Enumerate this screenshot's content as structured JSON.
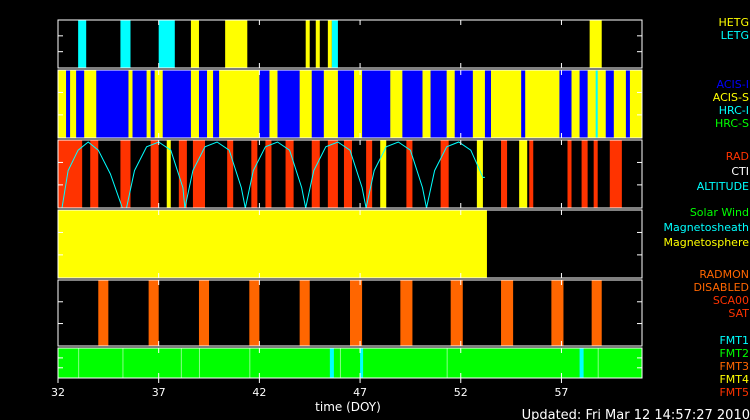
{
  "chart_data": {
    "type": "timeline",
    "xlabel": "time (DOY)",
    "xlim": [
      32,
      61
    ],
    "ticks": [
      32,
      37,
      42,
      47,
      52,
      57
    ],
    "footer": "Updated: Fri Mar 12 14:57:27 2010",
    "panels": [
      {
        "id": "grating",
        "legend": [
          {
            "label": "HETG",
            "color": "#ffff00"
          },
          {
            "label": "LETG",
            "color": "#00ffff"
          }
        ],
        "segments": [
          {
            "start": 33.0,
            "end": 33.4,
            "color": "#00ffff"
          },
          {
            "start": 35.1,
            "end": 35.6,
            "color": "#00ffff"
          },
          {
            "start": 37.0,
            "end": 37.8,
            "color": "#00ffff"
          },
          {
            "start": 38.6,
            "end": 39.0,
            "color": "#ffff00"
          },
          {
            "start": 40.3,
            "end": 41.4,
            "color": "#ffff00"
          },
          {
            "start": 44.3,
            "end": 44.5,
            "color": "#ffff00"
          },
          {
            "start": 44.8,
            "end": 45.0,
            "color": "#ffff00"
          },
          {
            "start": 45.4,
            "end": 45.6,
            "color": "#ffff00"
          },
          {
            "start": 45.6,
            "end": 45.9,
            "color": "#00ffff"
          },
          {
            "start": 58.4,
            "end": 59.0,
            "color": "#ffff00"
          }
        ]
      },
      {
        "id": "instrument",
        "legend": [
          {
            "label": "ACIS-I",
            "color": "#0000ff"
          },
          {
            "label": "ACIS-S",
            "color": "#ffff00"
          },
          {
            "label": "HRC-I",
            "color": "#00ffff"
          },
          {
            "label": "HRC-S",
            "color": "#00ff00"
          }
        ],
        "background": "#ffff00",
        "segments": [
          {
            "start": 32.4,
            "end": 32.6,
            "color": "#0000ff"
          },
          {
            "start": 32.9,
            "end": 33.3,
            "color": "#0000ff"
          },
          {
            "start": 33.9,
            "end": 35.5,
            "color": "#0000ff"
          },
          {
            "start": 35.7,
            "end": 36.4,
            "color": "#0000ff"
          },
          {
            "start": 36.6,
            "end": 36.8,
            "color": "#0000ff"
          },
          {
            "start": 37.2,
            "end": 38.6,
            "color": "#0000ff"
          },
          {
            "start": 39.0,
            "end": 39.4,
            "color": "#0000ff"
          },
          {
            "start": 39.7,
            "end": 40.0,
            "color": "#0000ff"
          },
          {
            "start": 42.0,
            "end": 42.5,
            "color": "#0000ff"
          },
          {
            "start": 42.9,
            "end": 44.0,
            "color": "#0000ff"
          },
          {
            "start": 44.6,
            "end": 45.2,
            "color": "#0000ff"
          },
          {
            "start": 45.9,
            "end": 46.7,
            "color": "#0000ff"
          },
          {
            "start": 47.1,
            "end": 48.5,
            "color": "#0000ff"
          },
          {
            "start": 49.1,
            "end": 50.1,
            "color": "#0000ff"
          },
          {
            "start": 50.5,
            "end": 51.3,
            "color": "#0000ff"
          },
          {
            "start": 51.7,
            "end": 52.6,
            "color": "#0000ff"
          },
          {
            "start": 53.2,
            "end": 53.5,
            "color": "#0000ff"
          },
          {
            "start": 55.0,
            "end": 55.2,
            "color": "#0000ff"
          },
          {
            "start": 56.9,
            "end": 57.5,
            "color": "#0000ff"
          },
          {
            "start": 57.9,
            "end": 58.3,
            "color": "#0000ff"
          },
          {
            "start": 59.2,
            "end": 59.6,
            "color": "#0000ff"
          },
          {
            "start": 60.2,
            "end": 60.4,
            "color": "#0000ff"
          },
          {
            "start": 58.7,
            "end": 58.8,
            "color": "#00ffff"
          }
        ]
      },
      {
        "id": "radiation",
        "legend": [
          {
            "label": "RAD",
            "color": "#ff3300"
          },
          {
            "label": "CTI",
            "color": "#ffffff"
          },
          {
            "label": "ALTITUDE",
            "color": "#00ffff"
          }
        ],
        "segments": [
          {
            "start": 32.0,
            "end": 33.2,
            "color": "#ff3300"
          },
          {
            "start": 33.6,
            "end": 34.0,
            "color": "#ff3300"
          },
          {
            "start": 35.1,
            "end": 35.6,
            "color": "#ff3300"
          },
          {
            "start": 36.6,
            "end": 37.0,
            "color": "#ff3300"
          },
          {
            "start": 37.4,
            "end": 37.6,
            "color": "#ffff00"
          },
          {
            "start": 38.0,
            "end": 38.4,
            "color": "#ff3300"
          },
          {
            "start": 38.7,
            "end": 39.3,
            "color": "#ff3300"
          },
          {
            "start": 40.4,
            "end": 40.7,
            "color": "#ff3300"
          },
          {
            "start": 41.6,
            "end": 41.9,
            "color": "#ff3300"
          },
          {
            "start": 42.3,
            "end": 42.6,
            "color": "#ff3300"
          },
          {
            "start": 43.3,
            "end": 43.7,
            "color": "#ff3300"
          },
          {
            "start": 44.6,
            "end": 45.0,
            "color": "#ff3300"
          },
          {
            "start": 45.4,
            "end": 45.9,
            "color": "#ff3300"
          },
          {
            "start": 46.2,
            "end": 46.6,
            "color": "#ff3300"
          },
          {
            "start": 47.3,
            "end": 47.6,
            "color": "#ff3300"
          },
          {
            "start": 48.0,
            "end": 48.3,
            "color": "#ffff00"
          },
          {
            "start": 49.3,
            "end": 49.6,
            "color": "#ff3300"
          },
          {
            "start": 51.0,
            "end": 51.4,
            "color": "#ff3300"
          },
          {
            "start": 52.8,
            "end": 53.1,
            "color": "#ffff00"
          },
          {
            "start": 54.0,
            "end": 54.3,
            "color": "#ff3300"
          },
          {
            "start": 54.9,
            "end": 55.3,
            "color": "#ffff00"
          },
          {
            "start": 55.4,
            "end": 55.6,
            "color": "#ff3300"
          },
          {
            "start": 57.3,
            "end": 57.5,
            "color": "#ff3300"
          },
          {
            "start": 58.0,
            "end": 58.3,
            "color": "#ff3300"
          },
          {
            "start": 58.6,
            "end": 58.8,
            "color": "#ff3300"
          },
          {
            "start": 59.4,
            "end": 60.0,
            "color": "#ff3300"
          }
        ],
        "altitude": {
          "color": "#00ffff",
          "range": [
            0,
            1
          ],
          "x": [
            32.2,
            32.5,
            33.0,
            33.5,
            34.0,
            34.6,
            35.2,
            35.4,
            35.8,
            36.4,
            37.0,
            37.6,
            38.2,
            38.3,
            38.7,
            39.3,
            39.9,
            40.5,
            41.1,
            41.3,
            41.7,
            42.3,
            42.9,
            43.5,
            44.1,
            44.3,
            44.7,
            45.3,
            45.9,
            46.5,
            47.1,
            47.3,
            47.7,
            48.3,
            48.9,
            49.5,
            50.1,
            50.3,
            50.7,
            51.3,
            51.9,
            52.5,
            53.1,
            53.2
          ],
          "y": [
            0.0,
            0.55,
            0.85,
            0.97,
            0.85,
            0.5,
            0.0,
            0.0,
            0.55,
            0.9,
            0.97,
            0.85,
            0.3,
            0.0,
            0.55,
            0.9,
            0.97,
            0.85,
            0.3,
            0.0,
            0.55,
            0.9,
            0.97,
            0.85,
            0.3,
            0.0,
            0.55,
            0.9,
            0.97,
            0.85,
            0.3,
            0.0,
            0.55,
            0.9,
            0.97,
            0.85,
            0.3,
            0.0,
            0.55,
            0.9,
            0.97,
            0.85,
            0.45,
            0.45
          ]
        }
      },
      {
        "id": "environment",
        "legend": [
          {
            "label": "Solar Wind",
            "color": "#00ff00"
          },
          {
            "label": "Magnetosheath",
            "color": "#00ffff"
          },
          {
            "label": "Magnetosphere",
            "color": "#ffff00"
          }
        ],
        "segments": [
          {
            "start": 32.0,
            "end": 53.3,
            "color": "#ffff00"
          }
        ]
      },
      {
        "id": "radmon",
        "legend": [
          {
            "label": "RADMON",
            "color": "#ff6600"
          },
          {
            "label": "DISABLED",
            "color": "#ff6600"
          },
          {
            "label": "SCA00",
            "color": "#ff3300"
          },
          {
            "label": "SAT",
            "color": "#ff3300"
          }
        ],
        "segments": [
          {
            "start": 34.0,
            "end": 34.5,
            "color": "#ff6600"
          },
          {
            "start": 36.5,
            "end": 37.0,
            "color": "#ff6600"
          },
          {
            "start": 39.0,
            "end": 39.5,
            "color": "#ff6600"
          },
          {
            "start": 41.5,
            "end": 42.0,
            "color": "#ff6600"
          },
          {
            "start": 44.0,
            "end": 44.5,
            "color": "#ff6600"
          },
          {
            "start": 46.5,
            "end": 47.1,
            "color": "#ff6600"
          },
          {
            "start": 49.0,
            "end": 49.6,
            "color": "#ff6600"
          },
          {
            "start": 51.5,
            "end": 52.1,
            "color": "#ff6600"
          },
          {
            "start": 54.0,
            "end": 54.6,
            "color": "#ff6600"
          },
          {
            "start": 56.5,
            "end": 57.1,
            "color": "#ff6600"
          },
          {
            "start": 58.5,
            "end": 59.0,
            "color": "#ff6600"
          }
        ]
      },
      {
        "id": "format",
        "legend": [
          {
            "label": "FMT1",
            "color": "#00ffff"
          },
          {
            "label": "FMT2",
            "color": "#00ff00"
          },
          {
            "label": "FMT3",
            "color": "#ff6600"
          },
          {
            "label": "FMT4",
            "color": "#ffff00"
          },
          {
            "label": "FMT5",
            "color": "#ff3300"
          }
        ],
        "background": "#00ff00",
        "segments": [
          {
            "start": 33.0,
            "end": 33.05,
            "color": "#88ff88"
          },
          {
            "start": 35.2,
            "end": 35.25,
            "color": "#88ff88"
          },
          {
            "start": 38.1,
            "end": 38.15,
            "color": "#88ff88"
          },
          {
            "start": 39.0,
            "end": 39.05,
            "color": "#88ff88"
          },
          {
            "start": 41.5,
            "end": 41.55,
            "color": "#88ff88"
          },
          {
            "start": 45.5,
            "end": 45.7,
            "color": "#00ffff"
          },
          {
            "start": 46.0,
            "end": 46.05,
            "color": "#88ff88"
          },
          {
            "start": 47.0,
            "end": 47.15,
            "color": "#00ffff"
          },
          {
            "start": 51.3,
            "end": 51.35,
            "color": "#88ff88"
          },
          {
            "start": 57.9,
            "end": 58.1,
            "color": "#00ffff"
          },
          {
            "start": 58.8,
            "end": 58.85,
            "color": "#88ff88"
          }
        ]
      }
    ]
  }
}
